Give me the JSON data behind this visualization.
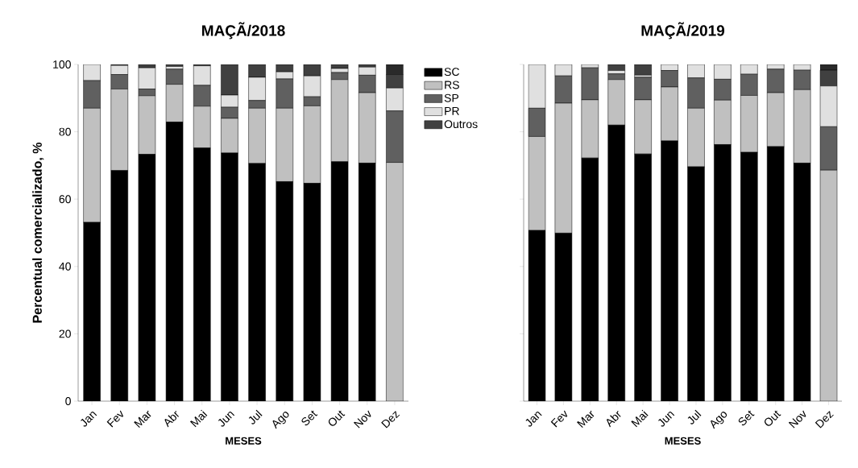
{
  "chart_data": [
    {
      "type": "bar",
      "stacked": true,
      "title": "MAÇÃ/2018",
      "xlabel": "MESES",
      "ylabel": "Percentual comercializado, %",
      "categories": [
        "Jan",
        "Fev",
        "Mar",
        "Abr",
        "Mai",
        "Jun",
        "Jul",
        "Ago",
        "Set",
        "Out",
        "Nov",
        "Dez"
      ],
      "ylim": [
        0,
        100
      ],
      "yticks": [
        0,
        20,
        40,
        60,
        80,
        100
      ],
      "legend": "right",
      "series": [
        {
          "name": "SC",
          "color": "#000000",
          "values": [
            53.1,
            68.5,
            73.3,
            82.9,
            75.2,
            73.7,
            70.6,
            65.2,
            64.7,
            71.1,
            70.7,
            0
          ]
        },
        {
          "name": "RS",
          "color": "#c0c0c0",
          "values": [
            33.9,
            24.2,
            17.4,
            11.2,
            12.4,
            10.3,
            16.4,
            21.8,
            23.0,
            24.4,
            20.9,
            70.9
          ]
        },
        {
          "name": "SP",
          "color": "#606060",
          "values": [
            8.2,
            4.3,
            2.0,
            4.5,
            6.2,
            3.3,
            2.3,
            8.7,
            2.7,
            2.1,
            5.2,
            15.3
          ]
        },
        {
          "name": "PR",
          "color": "#e0e0e0",
          "values": [
            4.8,
            2.7,
            6.3,
            0.8,
            5.8,
            3.6,
            6.9,
            2.1,
            6.2,
            1.2,
            2.4,
            6.8
          ]
        },
        {
          "name": "Outros",
          "color": "#404040",
          "values": [
            0,
            0.3,
            1.0,
            0.6,
            0.4,
            9.1,
            3.8,
            2.2,
            3.4,
            1.2,
            0.8,
            4.0
          ]
        },
        {
          "color": "#2a2a2a",
          "values": [
            0,
            0,
            0,
            0,
            0,
            0,
            0,
            0,
            0,
            0,
            0,
            3.0
          ]
        }
      ]
    },
    {
      "type": "bar",
      "stacked": true,
      "title": "MAÇÃ/2019",
      "xlabel": "MESES",
      "tick_labels": "x",
      "categories": [
        "Jan",
        "Fev",
        "Mar",
        "Abr",
        "Mai",
        "Jun",
        "Jul",
        "Ago",
        "Set",
        "Out",
        "Nov",
        "Dez"
      ],
      "ylim": [
        0,
        100
      ],
      "yticks": [
        {
          "value": 0,
          "label": null
        },
        {
          "value": 20,
          "label": null
        },
        {
          "value": 40,
          "label": null
        },
        {
          "value": 60,
          "label": null
        },
        {
          "value": 80,
          "label": null
        },
        {
          "value": 100,
          "label": null
        }
      ],
      "series": [
        {
          "color": "#000000",
          "values": [
            50.7,
            49.9,
            72.2,
            82.0,
            73.4,
            77.3,
            69.6,
            76.2,
            73.9,
            75.6,
            70.7,
            0
          ]
        },
        {
          "color": "#c0c0c0",
          "values": [
            27.9,
            38.6,
            17.3,
            13.5,
            16.1,
            16.0,
            17.4,
            13.2,
            16.9,
            16.0,
            21.8,
            68.6
          ]
        },
        {
          "color": "#606060",
          "values": [
            8.4,
            8.1,
            9.5,
            1.7,
            6.7,
            4.9,
            9.0,
            6.2,
            6.3,
            7.0,
            5.8,
            12.9
          ]
        },
        {
          "color": "#e0e0e0",
          "values": [
            13.0,
            3.4,
            1.0,
            1.0,
            0.6,
            1.8,
            4.0,
            4.4,
            2.9,
            1.4,
            1.7,
            12.1
          ]
        },
        {
          "color": "#404040",
          "values": [
            0,
            0,
            0,
            1.8,
            3.2,
            0,
            0,
            0,
            0,
            0,
            0,
            4.7
          ]
        },
        {
          "color": "#2a2a2a",
          "values": [
            0,
            0,
            0,
            0,
            0,
            0,
            0,
            0,
            0,
            0,
            0,
            1.7
          ]
        }
      ]
    }
  ]
}
